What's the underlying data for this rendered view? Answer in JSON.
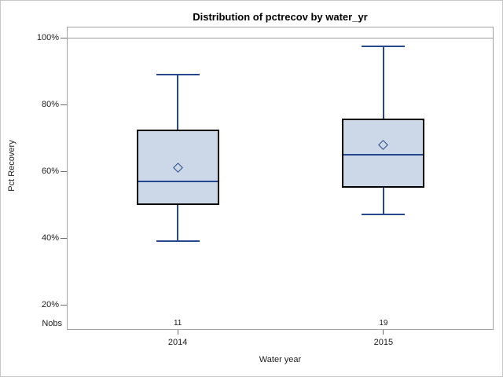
{
  "figure": {
    "title": "Distribution of pctrecov by water_yr"
  },
  "chart_data": {
    "type": "box",
    "title": "Distribution of pctrecov by water_yr",
    "xlabel": "Water year",
    "ylabel": "Pct Recovery",
    "categories": [
      "2014",
      "2015"
    ],
    "y_ticks": [
      {
        "value": 100,
        "label": "100%"
      },
      {
        "value": 80,
        "label": "80%"
      },
      {
        "value": 60,
        "label": "60%"
      },
      {
        "value": 40,
        "label": "40%"
      },
      {
        "value": 20,
        "label": "20%"
      }
    ],
    "ylim": [
      12.5,
      103.3
    ],
    "grid": "off",
    "refline": {
      "value": 100
    },
    "nobs_label": "Nobs",
    "series": [
      {
        "category": "2014",
        "nobs": "11",
        "min": 39,
        "q1": 50,
        "median": 57,
        "mean": 61,
        "q3": 72.5,
        "max": 89
      },
      {
        "category": "2015",
        "nobs": "19",
        "min": 47,
        "q1": 55,
        "median": 65,
        "mean": 68,
        "q3": 75.8,
        "max": 97.5
      }
    ],
    "colors": {
      "box_fill": "#ccd8e8",
      "box_border": "#000000",
      "line": "#26478d",
      "refline": "#9a9a9a",
      "wall_border": "#a3a3a3",
      "tick": "#6b6b6b",
      "figure_border": "#c6c6c6"
    }
  }
}
